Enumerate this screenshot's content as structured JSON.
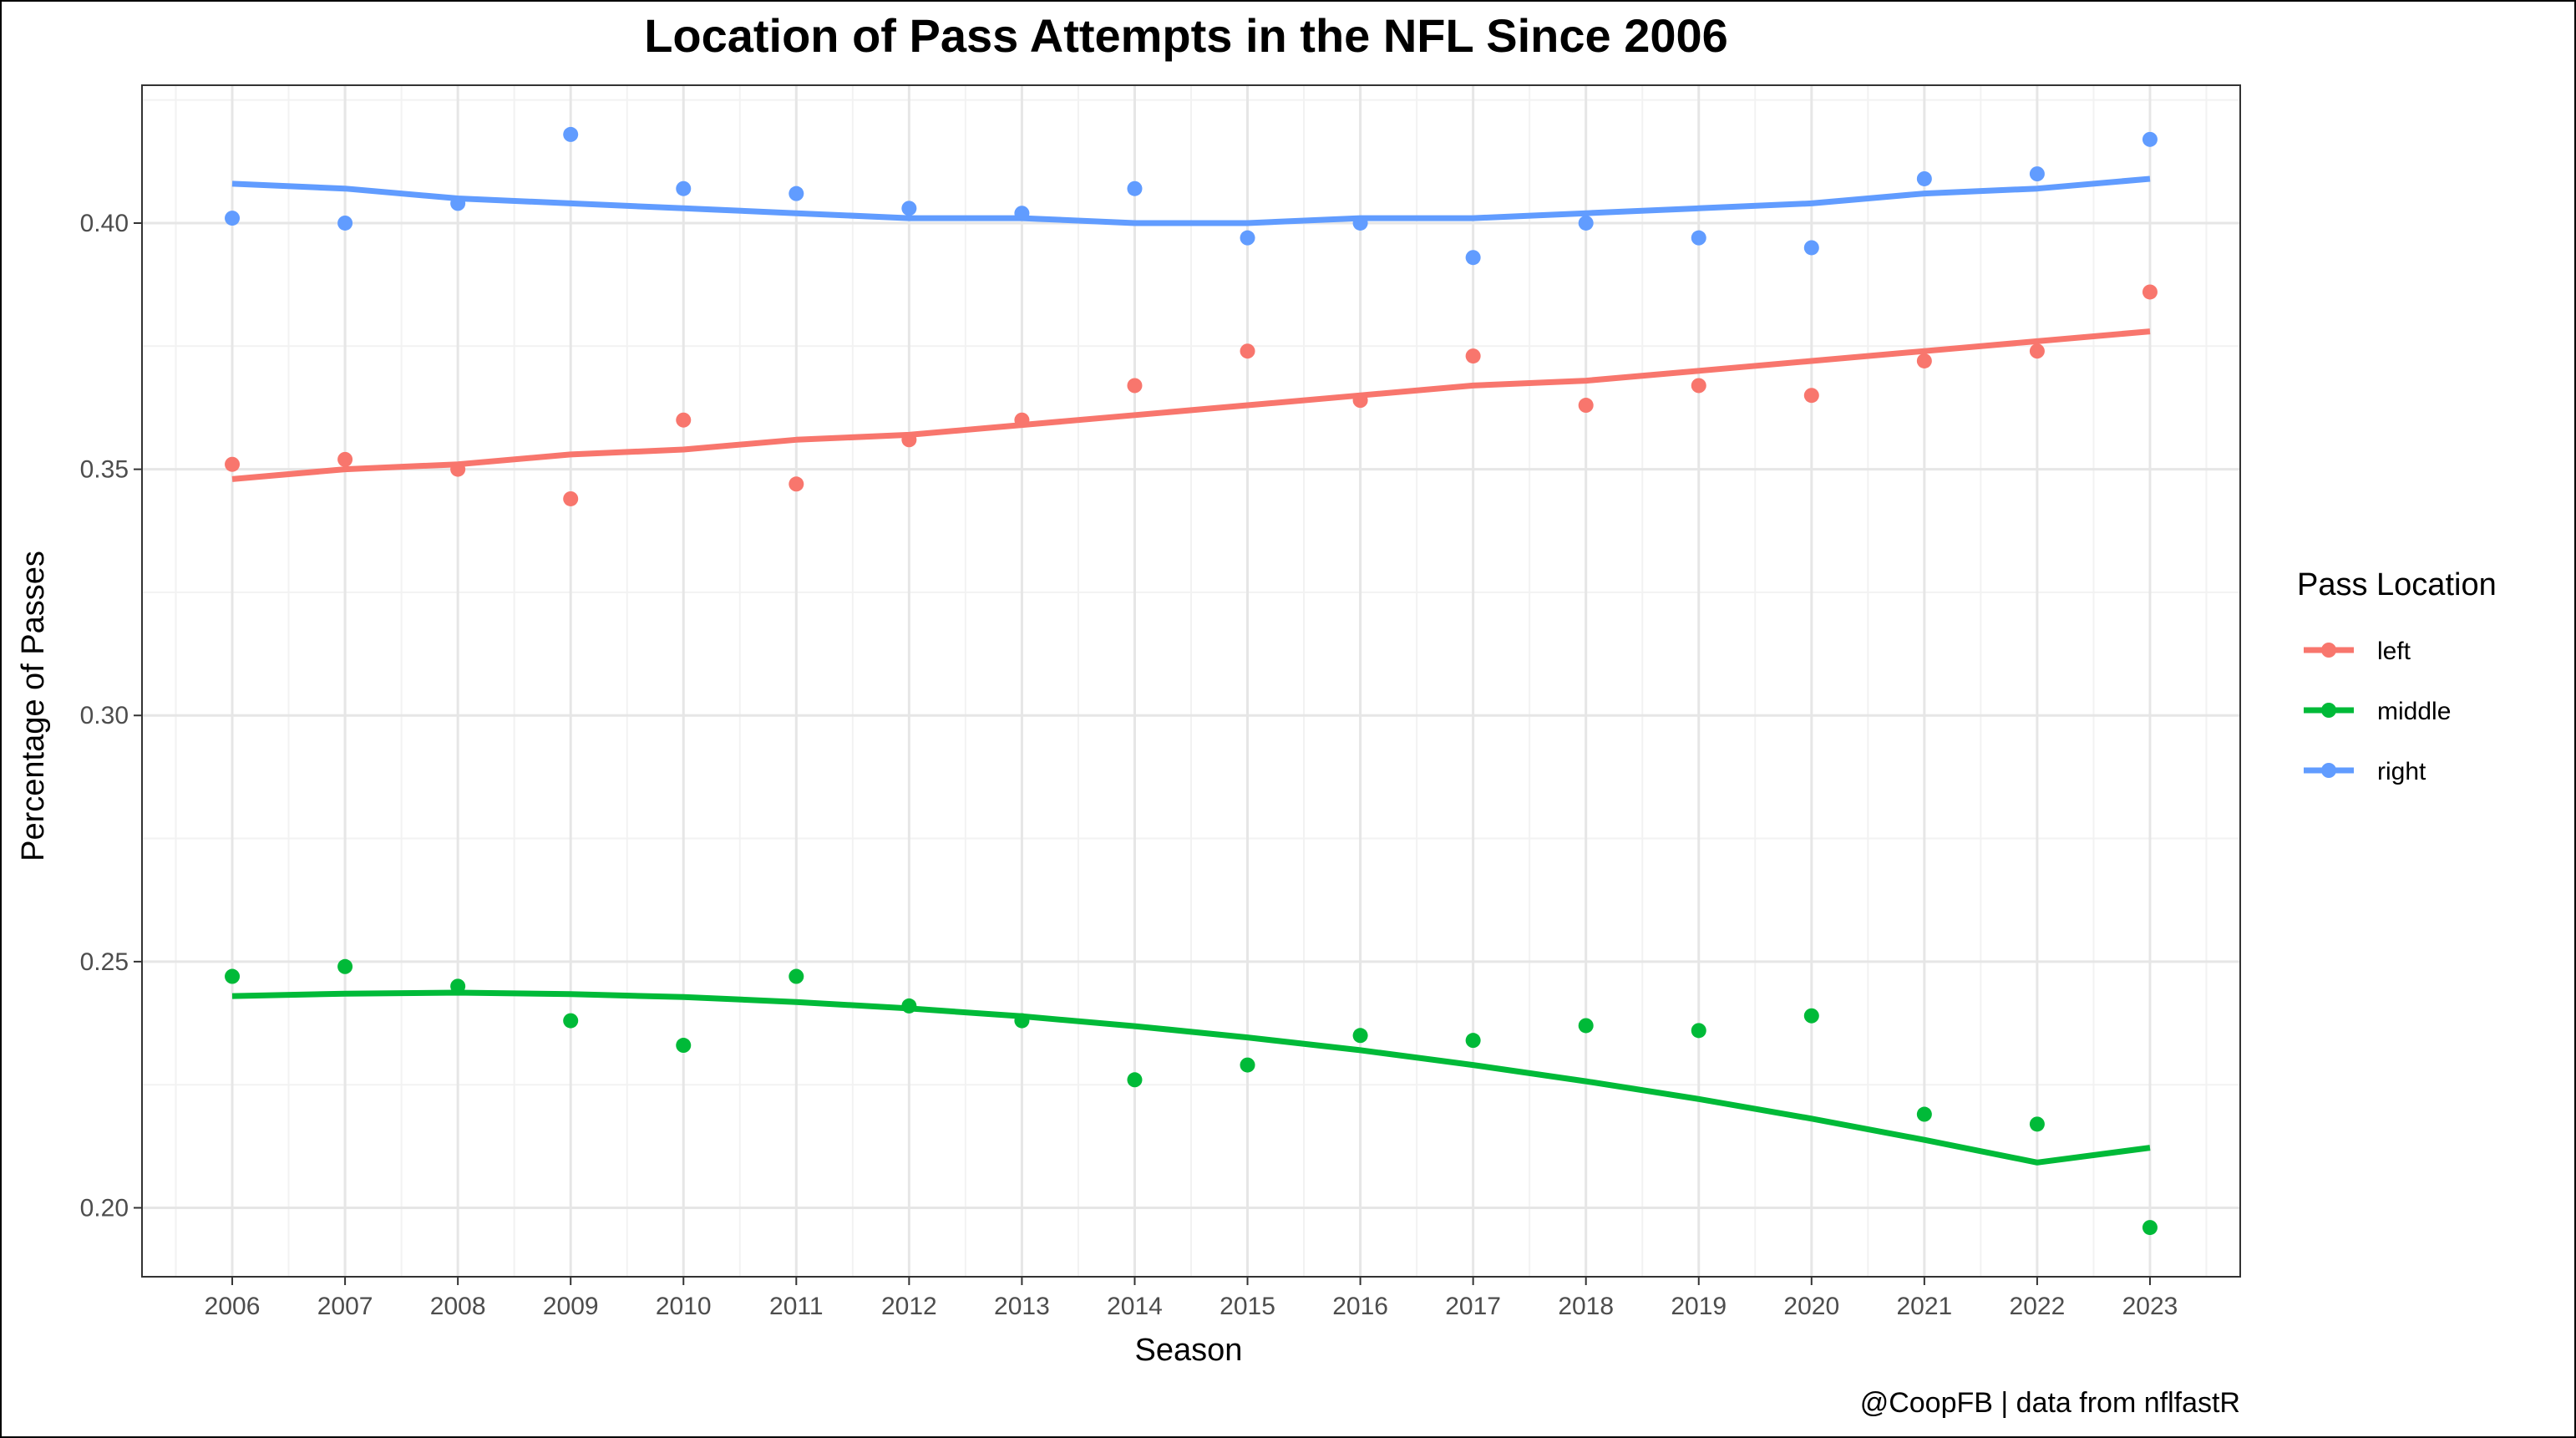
{
  "chart_data": {
    "type": "scatter",
    "title": "Location of Pass Attempts in the NFL Since 2006",
    "xlabel": "Season",
    "ylabel": "Percentage of Passes",
    "caption": "@CoopFB | data from nflfastR",
    "legend_title": "Pass Location",
    "legend_position": "right",
    "grid": true,
    "x": [
      2006,
      2007,
      2008,
      2009,
      2010,
      2011,
      2012,
      2013,
      2014,
      2015,
      2016,
      2017,
      2018,
      2019,
      2020,
      2021,
      2022,
      2023
    ],
    "xlim": [
      2005.2,
      2023.8
    ],
    "ylim": [
      0.186,
      0.428
    ],
    "y_ticks": [
      0.2,
      0.25,
      0.3,
      0.35,
      0.4
    ],
    "y_tick_labels": [
      "0.20",
      "0.25",
      "0.30",
      "0.35",
      "0.40"
    ],
    "x_tick_labels": [
      "2006",
      "2007",
      "2008",
      "2009",
      "2010",
      "2011",
      "2012",
      "2013",
      "2014",
      "2015",
      "2016",
      "2017",
      "2018",
      "2019",
      "2020",
      "2021",
      "2022",
      "2023"
    ],
    "series": [
      {
        "name": "left",
        "color": "#F8766D",
        "values": [
          0.351,
          0.352,
          0.35,
          0.344,
          0.36,
          0.347,
          0.356,
          0.36,
          0.367,
          0.374,
          0.364,
          0.373,
          0.363,
          0.367,
          0.365,
          0.372,
          0.374,
          0.386
        ],
        "trend": [
          0.348,
          0.35,
          0.351,
          0.353,
          0.354,
          0.356,
          0.357,
          0.359,
          0.361,
          0.363,
          0.365,
          0.367,
          0.368,
          0.37,
          0.372,
          0.374,
          0.376,
          0.378
        ]
      },
      {
        "name": "middle",
        "color": "#00BA38",
        "values": [
          0.247,
          0.249,
          0.245,
          0.238,
          0.233,
          0.247,
          0.241,
          0.238,
          0.226,
          0.229,
          0.235,
          0.234,
          0.237,
          0.236,
          0.239,
          0.219,
          0.217,
          0.196
        ],
        "trend": [
          0.243,
          0.2435,
          0.2437,
          0.2434,
          0.2428,
          0.2418,
          0.2405,
          0.2389,
          0.2369,
          0.2346,
          0.232,
          0.229,
          0.2257,
          0.2221,
          0.2181,
          0.2138,
          0.2092,
          0.2122
        ]
      },
      {
        "name": "right",
        "color": "#619CFF",
        "values": [
          0.401,
          0.4,
          0.404,
          0.418,
          0.407,
          0.406,
          0.403,
          0.402,
          0.407,
          0.397,
          0.4,
          0.393,
          0.4,
          0.397,
          0.395,
          0.409,
          0.41,
          0.417
        ],
        "trend": [
          0.408,
          0.407,
          0.405,
          0.404,
          0.403,
          0.402,
          0.401,
          0.401,
          0.4,
          0.4,
          0.401,
          0.401,
          0.402,
          0.403,
          0.404,
          0.406,
          0.407,
          0.409
        ]
      }
    ]
  }
}
